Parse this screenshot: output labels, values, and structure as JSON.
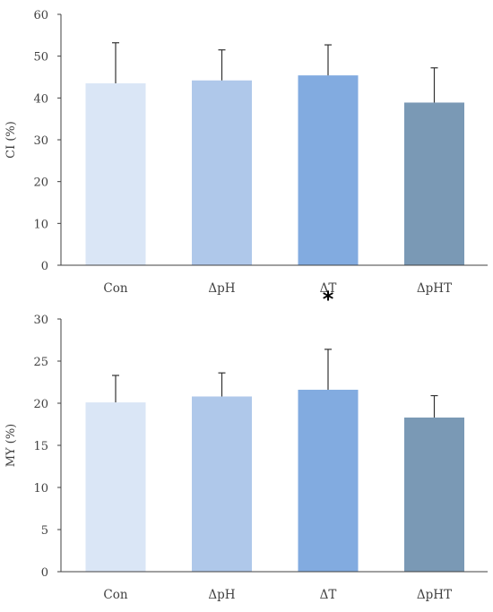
{
  "chart_data": [
    {
      "type": "bar",
      "categories": [
        "Con",
        "ΔpH",
        "ΔT",
        "ΔpHT"
      ],
      "values": [
        43.5,
        44.2,
        45.4,
        38.9
      ],
      "errors": [
        9.7,
        7.3,
        7.3,
        8.3
      ],
      "ylabel": "CI (%)",
      "xlabel": "",
      "ylim": [
        0,
        60
      ],
      "yticks": [
        0,
        10,
        20,
        30,
        40,
        50,
        60
      ],
      "colors": [
        "#dae6f6",
        "#afc8ea",
        "#82abe0",
        "#7a99b5"
      ],
      "annotations": [],
      "grid": false
    },
    {
      "type": "bar",
      "categories": [
        "Con",
        "ΔpH",
        "ΔT",
        "ΔpHT"
      ],
      "values": [
        20.1,
        20.8,
        21.6,
        18.3
      ],
      "errors": [
        3.2,
        2.8,
        4.8,
        2.6
      ],
      "ylabel": "MY (%)",
      "xlabel": "",
      "ylim": [
        0,
        30
      ],
      "yticks": [
        0,
        5,
        10,
        15,
        20,
        25,
        30
      ],
      "colors": [
        "#dae6f6",
        "#afc8ea",
        "#82abe0",
        "#7a99b5"
      ],
      "annotations": [
        {
          "category": "ΔT",
          "text": "*"
        }
      ],
      "grid": false
    }
  ]
}
